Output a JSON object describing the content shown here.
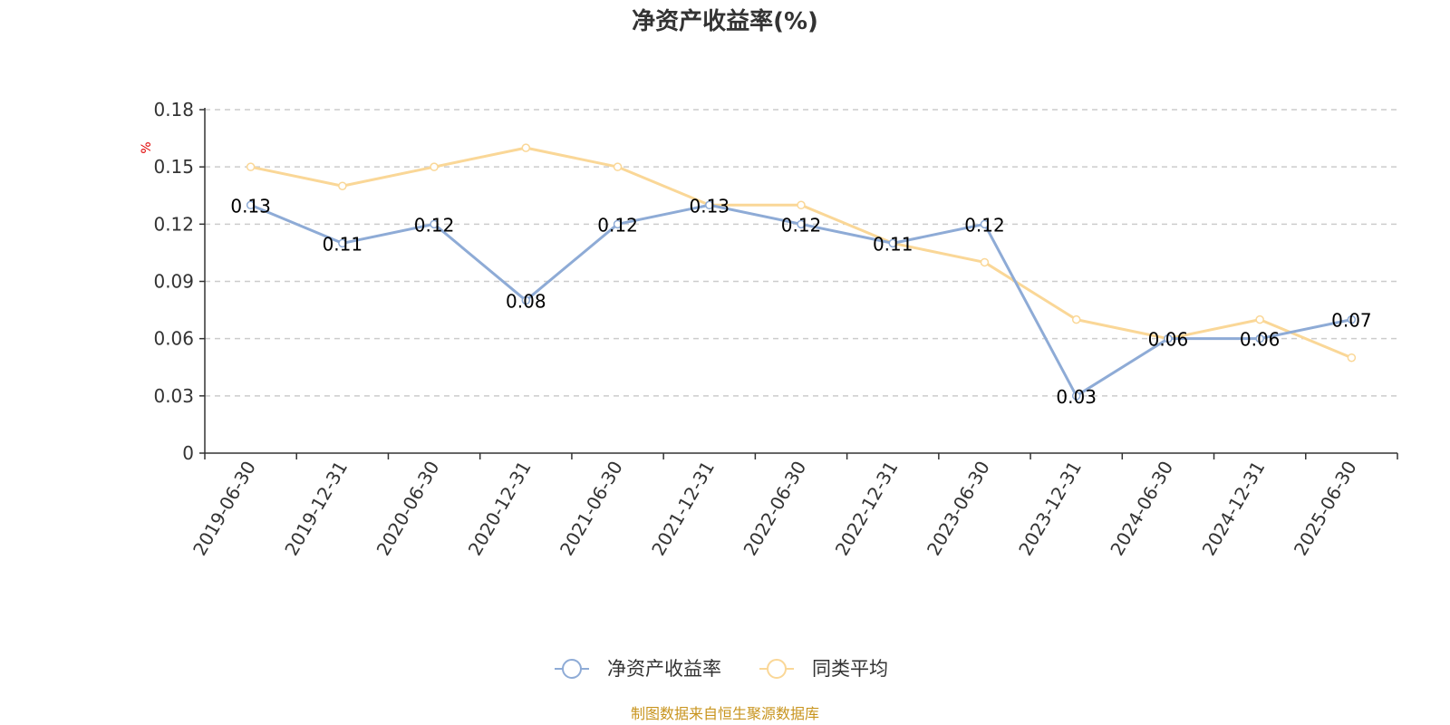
{
  "chart_data": {
    "type": "line",
    "title": "净资产收益率(%)",
    "ylabel": "%",
    "xlabel": "",
    "ylim": [
      0,
      0.18
    ],
    "yticks": [
      "0",
      "0.03",
      "0.06",
      "0.09",
      "0.12",
      "0.15",
      "0.18"
    ],
    "categories": [
      "2019-06-30",
      "2019-12-31",
      "2020-06-30",
      "2020-12-31",
      "2021-06-30",
      "2021-12-31",
      "2022-06-30",
      "2022-12-31",
      "2023-06-30",
      "2023-12-31",
      "2024-06-30",
      "2024-12-31",
      "2025-06-30"
    ],
    "series": [
      {
        "name": "净资产收益率",
        "color": "#8eabd6",
        "values": [
          0.13,
          0.11,
          0.12,
          0.08,
          0.12,
          0.13,
          0.12,
          0.11,
          0.12,
          0.03,
          0.06,
          0.06,
          0.07
        ],
        "labels": [
          "0.13",
          "0.11",
          "0.12",
          "0.08",
          "0.12",
          "0.13",
          "0.12",
          "0.11",
          "0.12",
          "0.03",
          "0.06",
          "0.06",
          "0.07"
        ]
      },
      {
        "name": "同类平均",
        "color": "#fad797",
        "values": [
          0.15,
          0.14,
          0.15,
          0.16,
          0.15,
          0.13,
          0.13,
          0.11,
          0.1,
          0.07,
          0.06,
          0.07,
          0.05
        ]
      }
    ],
    "grid": true,
    "legend_position": "bottom-center"
  },
  "source_note": "制图数据来自恒生聚源数据库"
}
